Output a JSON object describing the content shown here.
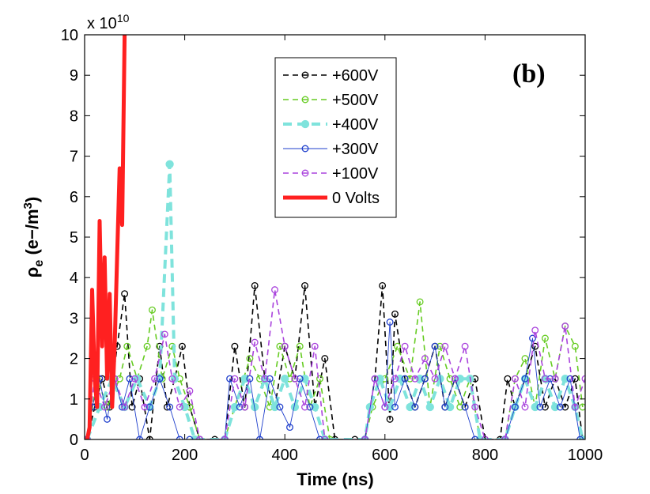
{
  "chart_data": {
    "type": "line",
    "title": "",
    "panel_label": "(b)",
    "xlabel": "Time (ns)",
    "ylabel_main": "ρ",
    "ylabel_sub": "e",
    "ylabel_unit_open": " (e−/m",
    "ylabel_unit_sup": "3",
    "ylabel_unit_close": ")",
    "y_exponent": "x 10",
    "y_exponent_power": "10",
    "xlim": [
      0,
      1000
    ],
    "ylim": [
      0,
      10
    ],
    "x_ticks": [
      0,
      200,
      400,
      600,
      800,
      1000
    ],
    "y_ticks": [
      0,
      1,
      2,
      3,
      4,
      5,
      6,
      7,
      8,
      9,
      10
    ],
    "grid": false,
    "legend_position": "top-right",
    "series": [
      {
        "name": "+600V",
        "color": "#000000",
        "dash": "dashed",
        "marker": "circle-open",
        "values": [
          [
            5,
            0
          ],
          [
            20,
            0.8
          ],
          [
            35,
            1.5
          ],
          [
            50,
            0.8
          ],
          [
            65,
            2.3
          ],
          [
            80,
            3.6
          ],
          [
            95,
            0.8
          ],
          [
            110,
            1.5
          ],
          [
            130,
            0
          ],
          [
            150,
            2.3
          ],
          [
            165,
            0.8
          ],
          [
            180,
            1.5
          ],
          [
            195,
            2.3
          ],
          [
            210,
            0.8
          ],
          [
            230,
            0
          ],
          [
            260,
            0
          ],
          [
            280,
            0
          ],
          [
            300,
            2.3
          ],
          [
            320,
            0.8
          ],
          [
            340,
            3.8
          ],
          [
            360,
            1.5
          ],
          [
            380,
            0.8
          ],
          [
            400,
            2.3
          ],
          [
            420,
            1.5
          ],
          [
            440,
            3.8
          ],
          [
            460,
            0.8
          ],
          [
            480,
            2.0
          ],
          [
            500,
            0
          ],
          [
            540,
            0
          ],
          [
            560,
            0
          ],
          [
            580,
            1.5
          ],
          [
            595,
            3.8
          ],
          [
            610,
            0.5
          ],
          [
            620,
            3.1
          ],
          [
            640,
            1.5
          ],
          [
            660,
            0.8
          ],
          [
            680,
            1.5
          ],
          [
            700,
            2.3
          ],
          [
            720,
            0.8
          ],
          [
            740,
            1.5
          ],
          [
            760,
            0.8
          ],
          [
            780,
            1.5
          ],
          [
            800,
            0
          ],
          [
            830,
            0
          ],
          [
            845,
            1.5
          ],
          [
            860,
            0.8
          ],
          [
            880,
            1.5
          ],
          [
            900,
            2.3
          ],
          [
            920,
            0.8
          ],
          [
            940,
            1.5
          ],
          [
            960,
            0.8
          ],
          [
            980,
            1.5
          ],
          [
            995,
            0
          ]
        ]
      },
      {
        "name": "+500V",
        "color": "#66cc22",
        "dash": "dashed",
        "marker": "circle-open",
        "values": [
          [
            5,
            0
          ],
          [
            25,
            1.5
          ],
          [
            45,
            0.8
          ],
          [
            70,
            1.5
          ],
          [
            85,
            2.3
          ],
          [
            105,
            1.5
          ],
          [
            125,
            2.3
          ],
          [
            135,
            3.2
          ],
          [
            155,
            1.5
          ],
          [
            175,
            2.3
          ],
          [
            190,
            1.5
          ],
          [
            210,
            0.8
          ],
          [
            230,
            0
          ],
          [
            280,
            0
          ],
          [
            300,
            0.8
          ],
          [
            330,
            2.0
          ],
          [
            350,
            1.5
          ],
          [
            370,
            0.8
          ],
          [
            390,
            2.3
          ],
          [
            410,
            1.5
          ],
          [
            430,
            2.3
          ],
          [
            450,
            0.8
          ],
          [
            470,
            1.5
          ],
          [
            490,
            0
          ],
          [
            560,
            0
          ],
          [
            575,
            0.8
          ],
          [
            600,
            1.5
          ],
          [
            625,
            2.3
          ],
          [
            650,
            1.5
          ],
          [
            670,
            3.4
          ],
          [
            690,
            0.8
          ],
          [
            710,
            2.3
          ],
          [
            730,
            1.5
          ],
          [
            750,
            0.8
          ],
          [
            770,
            1.5
          ],
          [
            790,
            0
          ],
          [
            840,
            0
          ],
          [
            860,
            1.5
          ],
          [
            880,
            2.0
          ],
          [
            900,
            0.8
          ],
          [
            920,
            2.5
          ],
          [
            940,
            1.5
          ],
          [
            960,
            2.8
          ],
          [
            980,
            2.3
          ],
          [
            995,
            0.8
          ]
        ]
      },
      {
        "name": "+400V",
        "color": "#7fe3dc",
        "dash": "dashed-thick",
        "marker": "circle-filled",
        "values": [
          [
            5,
            0
          ],
          [
            30,
            0.8
          ],
          [
            55,
            1.5
          ],
          [
            80,
            0.8
          ],
          [
            105,
            1.5
          ],
          [
            130,
            0.8
          ],
          [
            150,
            1.5
          ],
          [
            170,
            6.8
          ],
          [
            180,
            1.5
          ],
          [
            200,
            0.8
          ],
          [
            220,
            0
          ],
          [
            280,
            0
          ],
          [
            300,
            0.8
          ],
          [
            320,
            1.5
          ],
          [
            340,
            0.8
          ],
          [
            360,
            1.5
          ],
          [
            380,
            0.8
          ],
          [
            400,
            1.5
          ],
          [
            420,
            0.8
          ],
          [
            440,
            1.5
          ],
          [
            460,
            0.8
          ],
          [
            480,
            0
          ],
          [
            560,
            0
          ],
          [
            570,
            0.8
          ],
          [
            590,
            1.5
          ],
          [
            610,
            0.8
          ],
          [
            630,
            1.5
          ],
          [
            650,
            0.8
          ],
          [
            670,
            1.5
          ],
          [
            690,
            0.8
          ],
          [
            710,
            1.5
          ],
          [
            730,
            0.8
          ],
          [
            750,
            1.5
          ],
          [
            770,
            1.5
          ],
          [
            790,
            0
          ],
          [
            840,
            0
          ],
          [
            860,
            0.8
          ],
          [
            880,
            1.5
          ],
          [
            900,
            0.8
          ],
          [
            920,
            1.5
          ],
          [
            940,
            0.8
          ],
          [
            960,
            1.5
          ],
          [
            980,
            0.8
          ],
          [
            995,
            0
          ]
        ]
      },
      {
        "name": "+300V",
        "color": "#1f3fcc",
        "dash": "solid-thin",
        "marker": "circle-open",
        "values": [
          [
            5,
            0
          ],
          [
            15,
            0.8
          ],
          [
            30,
            1.5
          ],
          [
            45,
            0.5
          ],
          [
            60,
            1.5
          ],
          [
            75,
            0.8
          ],
          [
            90,
            1.5
          ],
          [
            110,
            0
          ],
          [
            130,
            0.8
          ],
          [
            150,
            1.5
          ],
          [
            170,
            0.8
          ],
          [
            190,
            0
          ],
          [
            210,
            0
          ],
          [
            230,
            0
          ],
          [
            280,
            0
          ],
          [
            290,
            1.5
          ],
          [
            310,
            0.8
          ],
          [
            330,
            1.5
          ],
          [
            350,
            0
          ],
          [
            370,
            1.5
          ],
          [
            390,
            0.8
          ],
          [
            410,
            0.3
          ],
          [
            430,
            1.5
          ],
          [
            450,
            0.8
          ],
          [
            470,
            0
          ],
          [
            560,
            0
          ],
          [
            580,
            1.5
          ],
          [
            600,
            0.8
          ],
          [
            610,
            2.9
          ],
          [
            620,
            0.8
          ],
          [
            640,
            1.5
          ],
          [
            660,
            0.8
          ],
          [
            680,
            1.5
          ],
          [
            700,
            2.3
          ],
          [
            720,
            0.8
          ],
          [
            740,
            1.5
          ],
          [
            760,
            0.8
          ],
          [
            780,
            0
          ],
          [
            840,
            0
          ],
          [
            860,
            0.8
          ],
          [
            880,
            1.5
          ],
          [
            895,
            2.5
          ],
          [
            910,
            0.8
          ],
          [
            930,
            1.5
          ],
          [
            950,
            0.8
          ],
          [
            970,
            1.5
          ],
          [
            990,
            0
          ]
        ]
      },
      {
        "name": "+100V",
        "color": "#aa44dd",
        "dash": "dashed",
        "marker": "circle-open",
        "values": [
          [
            5,
            0
          ],
          [
            20,
            1.5
          ],
          [
            40,
            0.8
          ],
          [
            60,
            1.5
          ],
          [
            80,
            0.8
          ],
          [
            100,
            1.5
          ],
          [
            120,
            0.8
          ],
          [
            140,
            1.5
          ],
          [
            160,
            2.6
          ],
          [
            175,
            1.5
          ],
          [
            190,
            0.8
          ],
          [
            210,
            1.2
          ],
          [
            230,
            0
          ],
          [
            280,
            0
          ],
          [
            300,
            1.5
          ],
          [
            320,
            0.8
          ],
          [
            340,
            2.4
          ],
          [
            360,
            1.5
          ],
          [
            380,
            3.7
          ],
          [
            400,
            2.3
          ],
          [
            420,
            1.5
          ],
          [
            440,
            0.8
          ],
          [
            460,
            2.3
          ],
          [
            480,
            0
          ],
          [
            560,
            0
          ],
          [
            580,
            1.5
          ],
          [
            600,
            0.8
          ],
          [
            620,
            1.5
          ],
          [
            640,
            2.3
          ],
          [
            660,
            1.5
          ],
          [
            680,
            2.0
          ],
          [
            700,
            1.5
          ],
          [
            720,
            2.3
          ],
          [
            740,
            1.5
          ],
          [
            760,
            2.3
          ],
          [
            780,
            0.8
          ],
          [
            800,
            0
          ],
          [
            840,
            0
          ],
          [
            860,
            1.5
          ],
          [
            880,
            0.8
          ],
          [
            900,
            2.7
          ],
          [
            920,
            1.5
          ],
          [
            940,
            1.5
          ],
          [
            960,
            2.8
          ],
          [
            980,
            0.8
          ],
          [
            1000,
            1.5
          ]
        ]
      },
      {
        "name": "0 Volts",
        "color": "#ff2020",
        "dash": "solid-thick",
        "marker": "none",
        "values": [
          [
            5,
            0
          ],
          [
            10,
            0.3
          ],
          [
            15,
            3.7
          ],
          [
            20,
            1.5
          ],
          [
            25,
            0.8
          ],
          [
            30,
            5.4
          ],
          [
            35,
            2.3
          ],
          [
            40,
            4.5
          ],
          [
            45,
            1.5
          ],
          [
            50,
            3.6
          ],
          [
            55,
            0.8
          ],
          [
            60,
            2.3
          ],
          [
            65,
            4.5
          ],
          [
            70,
            6.7
          ],
          [
            75,
            5.3
          ],
          [
            80,
            10.0
          ],
          [
            83,
            10.0
          ]
        ]
      }
    ]
  }
}
